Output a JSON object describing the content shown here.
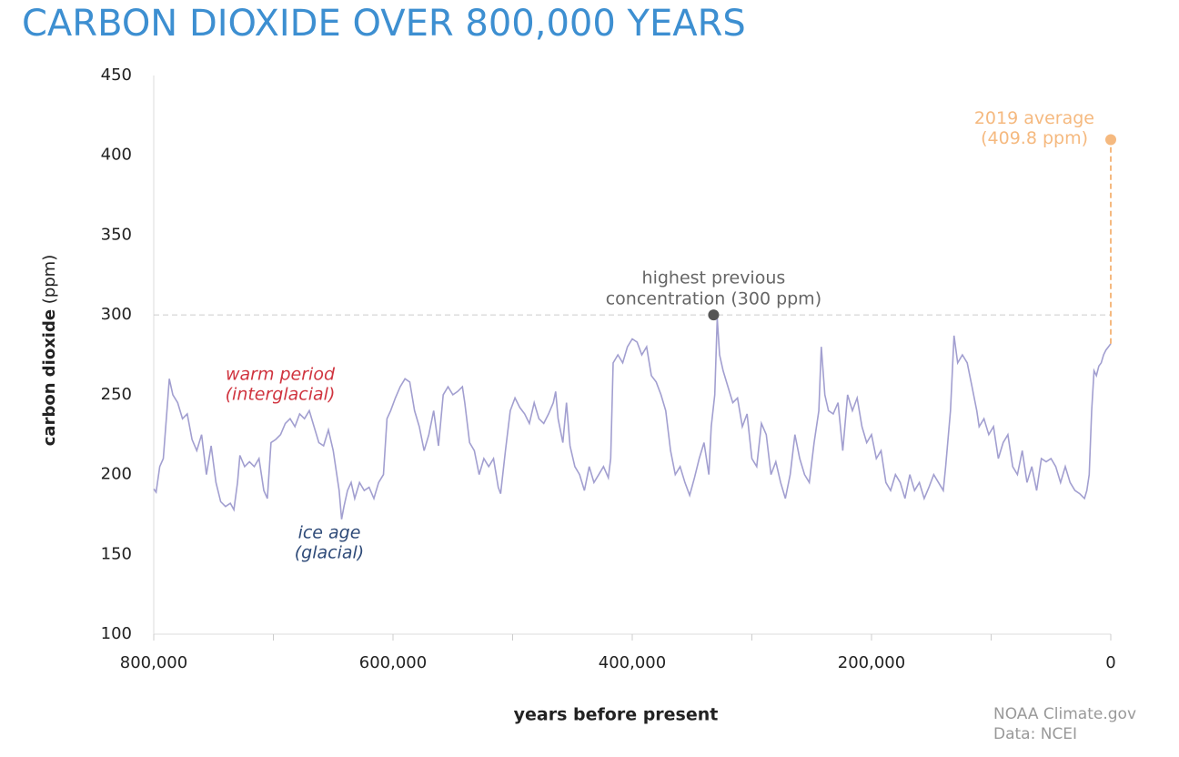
{
  "chart_data": {
    "type": "line",
    "title": "CARBON DIOXIDE OVER 800,000 YEARS",
    "x_label": "years before present",
    "y_label": {
      "bold": "carbon dioxide",
      "unit": "(ppm)"
    },
    "xlim": [
      800000,
      0
    ],
    "xticks": [
      {
        "value": 800000,
        "label": "800,000"
      },
      {
        "value": 600000,
        "label": "600,000"
      },
      {
        "value": 400000,
        "label": "400,000"
      },
      {
        "value": 200000,
        "label": "200,000"
      },
      0
    ],
    "xminorticks": [
      700000,
      500000,
      300000,
      100000
    ],
    "ylim": [
      100,
      450
    ],
    "yticks": [
      100,
      150,
      200,
      250,
      300,
      350,
      400,
      450
    ],
    "color": "#a29fd0",
    "x": [
      800000,
      798000,
      795000,
      792000,
      789000,
      787000,
      784000,
      780000,
      776000,
      772000,
      768000,
      764000,
      760000,
      756000,
      752000,
      748000,
      744000,
      740000,
      736000,
      733000,
      730000,
      728000,
      724000,
      720000,
      716000,
      712000,
      708000,
      705000,
      702000,
      698000,
      694000,
      690000,
      686000,
      682000,
      678000,
      674000,
      670000,
      666000,
      662000,
      658000,
      654000,
      650000,
      647000,
      645000,
      643000,
      641000,
      638000,
      635000,
      632000,
      628000,
      624000,
      620000,
      616000,
      612000,
      608000,
      605000,
      602000,
      598000,
      594000,
      590000,
      586000,
      582000,
      578000,
      574000,
      570000,
      566000,
      562000,
      558000,
      554000,
      550000,
      546000,
      542000,
      540000,
      536000,
      532000,
      528000,
      524000,
      520000,
      516000,
      512000,
      510000,
      506000,
      502000,
      498000,
      494000,
      490000,
      486000,
      482000,
      478000,
      474000,
      470000,
      466000,
      464000,
      462000,
      458000,
      455000,
      452000,
      448000,
      444000,
      440000,
      436000,
      432000,
      428000,
      424000,
      420000,
      418000,
      416000,
      412000,
      408000,
      404000,
      400000,
      396000,
      392000,
      388000,
      384000,
      380000,
      376000,
      372000,
      368000,
      364000,
      360000,
      356000,
      352000,
      348000,
      344000,
      340000,
      336000,
      334000,
      331000,
      329000,
      327000,
      324000,
      320000,
      316000,
      312000,
      308000,
      304000,
      300000,
      296000,
      292000,
      288000,
      284000,
      280000,
      276000,
      272000,
      268000,
      264000,
      260000,
      256000,
      252000,
      248000,
      244000,
      242000,
      239000,
      236000,
      232000,
      228000,
      224000,
      220000,
      216000,
      212000,
      208000,
      204000,
      200000,
      196000,
      192000,
      188000,
      184000,
      180000,
      176000,
      172000,
      168000,
      164000,
      160000,
      156000,
      152000,
      148000,
      144000,
      140000,
      138000,
      134000,
      131000,
      128000,
      124000,
      120000,
      116000,
      112000,
      110000,
      106000,
      102000,
      98000,
      94000,
      90000,
      86000,
      82000,
      78000,
      74000,
      70000,
      66000,
      62000,
      58000,
      54000,
      50000,
      46000,
      42000,
      38000,
      34000,
      30000,
      26000,
      22000,
      20000,
      18000,
      16000,
      14000,
      12000,
      10000,
      8000,
      6000,
      4000,
      2000,
      0
    ],
    "values": [
      191,
      189,
      205,
      210,
      240,
      260,
      250,
      245,
      235,
      238,
      222,
      215,
      225,
      200,
      218,
      195,
      183,
      180,
      182,
      178,
      195,
      212,
      205,
      208,
      205,
      210,
      190,
      185,
      220,
      222,
      225,
      232,
      235,
      230,
      238,
      235,
      240,
      230,
      220,
      218,
      228,
      215,
      200,
      190,
      172,
      180,
      190,
      195,
      185,
      195,
      190,
      192,
      185,
      195,
      200,
      235,
      240,
      248,
      255,
      260,
      258,
      240,
      230,
      215,
      225,
      240,
      218,
      250,
      255,
      250,
      252,
      255,
      245,
      220,
      215,
      200,
      210,
      205,
      210,
      192,
      188,
      215,
      240,
      248,
      242,
      238,
      232,
      245,
      235,
      232,
      238,
      245,
      252,
      235,
      220,
      245,
      218,
      205,
      200,
      190,
      205,
      195,
      200,
      205,
      198,
      210,
      270,
      275,
      270,
      280,
      285,
      283,
      275,
      280,
      262,
      258,
      250,
      240,
      215,
      200,
      205,
      195,
      187,
      198,
      210,
      220,
      200,
      230,
      250,
      298,
      275,
      265,
      255,
      245,
      248,
      230,
      238,
      210,
      205,
      232,
      225,
      200,
      208,
      195,
      185,
      200,
      225,
      210,
      200,
      195,
      220,
      240,
      280,
      250,
      240,
      238,
      245,
      215,
      250,
      240,
      248,
      230,
      220,
      225,
      210,
      215,
      195,
      190,
      200,
      195,
      185,
      200,
      190,
      195,
      185,
      192,
      200,
      195,
      190,
      205,
      240,
      287,
      270,
      275,
      270,
      255,
      240,
      230,
      235,
      225,
      230,
      210,
      220,
      225,
      205,
      200,
      215,
      195,
      205,
      190,
      210,
      208,
      210,
      205,
      195,
      205,
      195,
      190,
      188,
      185,
      190,
      200,
      240,
      265,
      262,
      268,
      270,
      275,
      278,
      280,
      282
    ],
    "reference_line": 300,
    "points": [
      {
        "x": 332000,
        "y": 300,
        "color": "#555555",
        "label": [
          "highest previous",
          "concentration (300 ppm)"
        ]
      },
      {
        "x": 0,
        "y": 409.8,
        "color": "#f5b97f",
        "label": [
          "2019 average",
          "(409.8 ppm)"
        ]
      }
    ],
    "annotations": [
      {
        "text": [
          "warm period",
          "(interglacial)"
        ],
        "color": "#d0343f"
      },
      {
        "text": [
          "ice age",
          "(glacial)"
        ],
        "color": "#2e4a78"
      }
    ],
    "credits": [
      "NOAA Climate.gov",
      "Data: NCEI"
    ]
  }
}
